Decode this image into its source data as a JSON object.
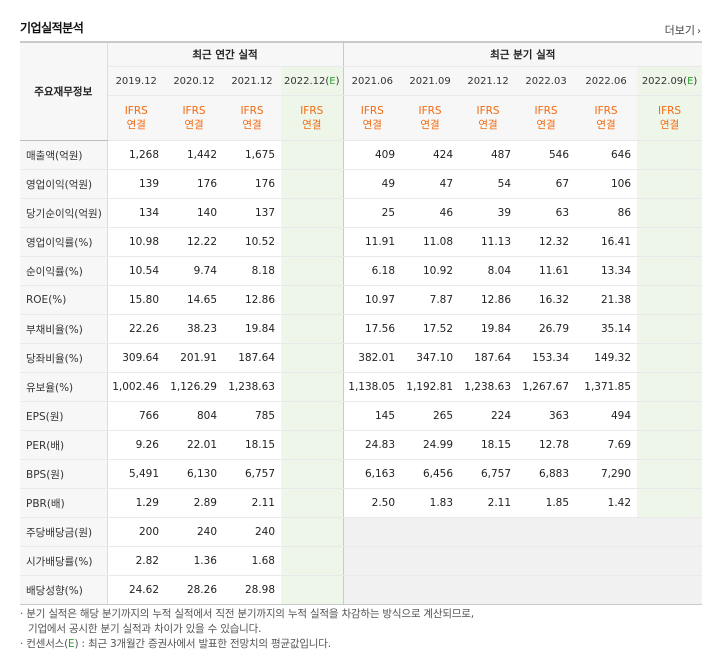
{
  "title": "기업실적분석",
  "more_label": "더보기",
  "groups": {
    "annual": "최근 연간 실적",
    "quarterly": "최근 분기 실적"
  },
  "label_header": "주요재무정보",
  "periods": [
    {
      "label": "2019.12",
      "estimate": false
    },
    {
      "label": "2020.12",
      "estimate": false
    },
    {
      "label": "2021.12",
      "estimate": false
    },
    {
      "label": "2022.12",
      "estimate": true
    },
    {
      "label": "2021.06",
      "estimate": false
    },
    {
      "label": "2021.09",
      "estimate": false
    },
    {
      "label": "2021.12",
      "estimate": false
    },
    {
      "label": "2022.03",
      "estimate": false
    },
    {
      "label": "2022.06",
      "estimate": false
    },
    {
      "label": "2022.09",
      "estimate": true
    }
  ],
  "estimate_marker": "E",
  "ifrs": {
    "line1": "IFRS",
    "line2": "연결"
  },
  "rows": [
    {
      "label": "매출액(억원)",
      "values": [
        "1,268",
        "1,442",
        "1,675",
        "",
        "409",
        "424",
        "487",
        "546",
        "646",
        ""
      ]
    },
    {
      "label": "영업이익(억원)",
      "values": [
        "139",
        "176",
        "176",
        "",
        "49",
        "47",
        "54",
        "67",
        "106",
        ""
      ]
    },
    {
      "label": "당기순이익(억원)",
      "values": [
        "134",
        "140",
        "137",
        "",
        "25",
        "46",
        "39",
        "63",
        "86",
        ""
      ]
    },
    {
      "label": "영업이익률(%)",
      "values": [
        "10.98",
        "12.22",
        "10.52",
        "",
        "11.91",
        "11.08",
        "11.13",
        "12.32",
        "16.41",
        ""
      ],
      "group_start": true
    },
    {
      "label": "순이익률(%)",
      "values": [
        "10.54",
        "9.74",
        "8.18",
        "",
        "6.18",
        "10.92",
        "8.04",
        "11.61",
        "13.34",
        ""
      ]
    },
    {
      "label": "ROE(%)",
      "values": [
        "15.80",
        "14.65",
        "12.86",
        "",
        "10.97",
        "7.87",
        "12.86",
        "16.32",
        "21.38",
        ""
      ]
    },
    {
      "label": "부채비율(%)",
      "values": [
        "22.26",
        "38.23",
        "19.84",
        "",
        "17.56",
        "17.52",
        "19.84",
        "26.79",
        "35.14",
        ""
      ],
      "group_start": true
    },
    {
      "label": "당좌비율(%)",
      "values": [
        "309.64",
        "201.91",
        "187.64",
        "",
        "382.01",
        "347.10",
        "187.64",
        "153.34",
        "149.32",
        ""
      ]
    },
    {
      "label": "유보율(%)",
      "values": [
        "1,002.46",
        "1,126.29",
        "1,238.63",
        "",
        "1,138.05",
        "1,192.81",
        "1,238.63",
        "1,267.67",
        "1,371.85",
        ""
      ]
    },
    {
      "label": "EPS(원)",
      "values": [
        "766",
        "804",
        "785",
        "",
        "145",
        "265",
        "224",
        "363",
        "494",
        ""
      ],
      "group_start": true
    },
    {
      "label": "PER(배)",
      "values": [
        "9.26",
        "22.01",
        "18.15",
        "",
        "24.83",
        "24.99",
        "18.15",
        "12.78",
        "7.69",
        ""
      ]
    },
    {
      "label": "BPS(원)",
      "values": [
        "5,491",
        "6,130",
        "6,757",
        "",
        "6,163",
        "6,456",
        "6,757",
        "6,883",
        "7,290",
        ""
      ]
    },
    {
      "label": "PBR(배)",
      "values": [
        "1.29",
        "2.89",
        "2.11",
        "",
        "2.50",
        "1.83",
        "2.11",
        "1.85",
        "1.42",
        ""
      ]
    },
    {
      "label": "주당배당금(원)",
      "values": [
        "200",
        "240",
        "240",
        "",
        "",
        "",
        "",
        "",
        "",
        ""
      ],
      "group_start": true,
      "quarter_gray": true
    },
    {
      "label": "시가배당률(%)",
      "values": [
        "2.82",
        "1.36",
        "1.68",
        "",
        "",
        "",
        "",
        "",
        "",
        ""
      ],
      "quarter_gray": true
    },
    {
      "label": "배당성향(%)",
      "values": [
        "24.62",
        "28.26",
        "28.98",
        "",
        "",
        "",
        "",
        "",
        "",
        ""
      ],
      "quarter_gray": true
    }
  ],
  "notes": {
    "line1": "분기 실적은 해당 분기까지의 누적 실적에서 직전 분기까지의 누적 실적을 차감하는 방식으로 계산되므로,",
    "line2": "기업에서 공시한 분기 실적과 차이가 있을 수 있습니다.",
    "line3_prefix": "컨센서스(",
    "line3_e": "E",
    "line3_suffix": ") : 최근 3개월간 증권사에서 발표한 전망치의 평균값입니다."
  }
}
